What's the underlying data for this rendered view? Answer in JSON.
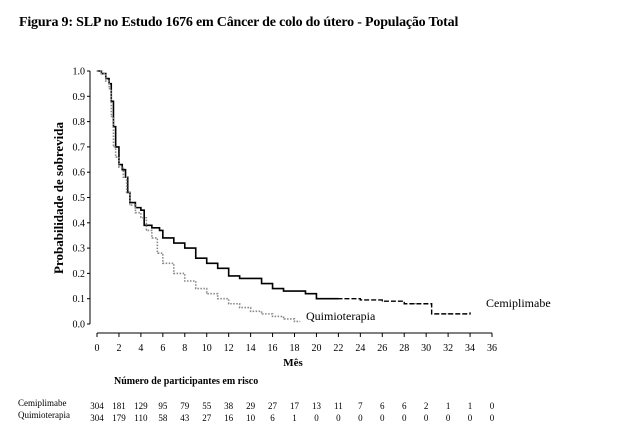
{
  "figure": {
    "title": "Figura 9: SLP no Estudo 1676 em Câncer de colo do útero - População Total"
  },
  "chart_data": {
    "type": "line",
    "title": "Figura 9: SLP no Estudo 1676 em Câncer de colo do útero - População Total",
    "xlabel": "Mês",
    "ylabel": "Probabilidade de sobrevida",
    "xlim": [
      0,
      36
    ],
    "ylim": [
      0.0,
      1.0
    ],
    "x_ticks": [
      0,
      2,
      4,
      6,
      8,
      10,
      12,
      14,
      16,
      18,
      20,
      22,
      24,
      26,
      28,
      30,
      32,
      34,
      36
    ],
    "y_ticks": [
      "0.0",
      "0.1",
      "0.2",
      "0.3",
      "0.4",
      "0.5",
      "0.6",
      "0.7",
      "0.8",
      "0.9",
      "1.0"
    ],
    "grid": false,
    "series": [
      {
        "name": "Cemiplimabe",
        "color": "#000000",
        "style": "solid-then-dashed",
        "points": [
          [
            0,
            1.0
          ],
          [
            0.4,
            0.99
          ],
          [
            0.8,
            0.97
          ],
          [
            1.1,
            0.95
          ],
          [
            1.3,
            0.88
          ],
          [
            1.5,
            0.78
          ],
          [
            1.7,
            0.7
          ],
          [
            2.0,
            0.63
          ],
          [
            2.3,
            0.61
          ],
          [
            2.6,
            0.58
          ],
          [
            2.8,
            0.52
          ],
          [
            3.0,
            0.48
          ],
          [
            3.5,
            0.46
          ],
          [
            4.0,
            0.45
          ],
          [
            4.3,
            0.39
          ],
          [
            5.0,
            0.38
          ],
          [
            5.7,
            0.37
          ],
          [
            6.0,
            0.34
          ],
          [
            7.0,
            0.32
          ],
          [
            8.0,
            0.3
          ],
          [
            9.0,
            0.26
          ],
          [
            10.0,
            0.24
          ],
          [
            11.0,
            0.22
          ],
          [
            12.0,
            0.19
          ],
          [
            13.0,
            0.18
          ],
          [
            14.0,
            0.18
          ],
          [
            15.0,
            0.16
          ],
          [
            16.0,
            0.14
          ],
          [
            17.0,
            0.13
          ],
          [
            18.0,
            0.13
          ],
          [
            19.0,
            0.12
          ],
          [
            20.0,
            0.1
          ],
          [
            22.0,
            0.1
          ],
          [
            24.0,
            0.095
          ],
          [
            26.0,
            0.09
          ],
          [
            27.0,
            0.09
          ],
          [
            28.0,
            0.08
          ],
          [
            29.0,
            0.08
          ],
          [
            30.0,
            0.08
          ],
          [
            30.5,
            0.04
          ],
          [
            32.0,
            0.04
          ],
          [
            34.0,
            0.045
          ]
        ]
      },
      {
        "name": "Quimioterapia",
        "color": "#888888",
        "style": "dotted",
        "points": [
          [
            0,
            1.0
          ],
          [
            0.4,
            0.99
          ],
          [
            0.8,
            0.96
          ],
          [
            1.1,
            0.93
          ],
          [
            1.3,
            0.82
          ],
          [
            1.5,
            0.7
          ],
          [
            1.7,
            0.66
          ],
          [
            2.0,
            0.62
          ],
          [
            2.4,
            0.58
          ],
          [
            2.7,
            0.52
          ],
          [
            3.0,
            0.47
          ],
          [
            3.5,
            0.44
          ],
          [
            4.0,
            0.42
          ],
          [
            4.5,
            0.37
          ],
          [
            5.0,
            0.34
          ],
          [
            5.5,
            0.28
          ],
          [
            6.0,
            0.24
          ],
          [
            7.0,
            0.2
          ],
          [
            8.0,
            0.17
          ],
          [
            9.0,
            0.14
          ],
          [
            10.0,
            0.12
          ],
          [
            11.0,
            0.1
          ],
          [
            12.0,
            0.08
          ],
          [
            13.0,
            0.065
          ],
          [
            14.0,
            0.05
          ],
          [
            15.0,
            0.04
          ],
          [
            16.0,
            0.03
          ],
          [
            17.0,
            0.02
          ],
          [
            18.0,
            0.01
          ],
          [
            18.5,
            0.01
          ]
        ]
      }
    ],
    "annotations": [
      {
        "text": "Cemiplimabe"
      },
      {
        "text": "Quimioterapia"
      }
    ]
  },
  "risk_table": {
    "header": "Número de participantes em risco",
    "times": [
      0,
      2,
      4,
      6,
      8,
      10,
      12,
      14,
      16,
      18,
      20,
      22,
      24,
      26,
      28,
      30,
      32,
      34,
      36
    ],
    "rows": [
      {
        "label": "Cemiplimabe",
        "values": [
          "304",
          "181",
          "129",
          "95",
          "79",
          "55",
          "38",
          "29",
          "27",
          "17",
          "13",
          "11",
          "7",
          "6",
          "6",
          "2",
          "1",
          "1",
          "0"
        ]
      },
      {
        "label": "Quimioterapia",
        "values": [
          "304",
          "179",
          "110",
          "58",
          "43",
          "27",
          "16",
          "10",
          "6",
          "1",
          "0",
          "0",
          "0",
          "0",
          "0",
          "0",
          "0",
          "0",
          "0"
        ]
      }
    ]
  }
}
